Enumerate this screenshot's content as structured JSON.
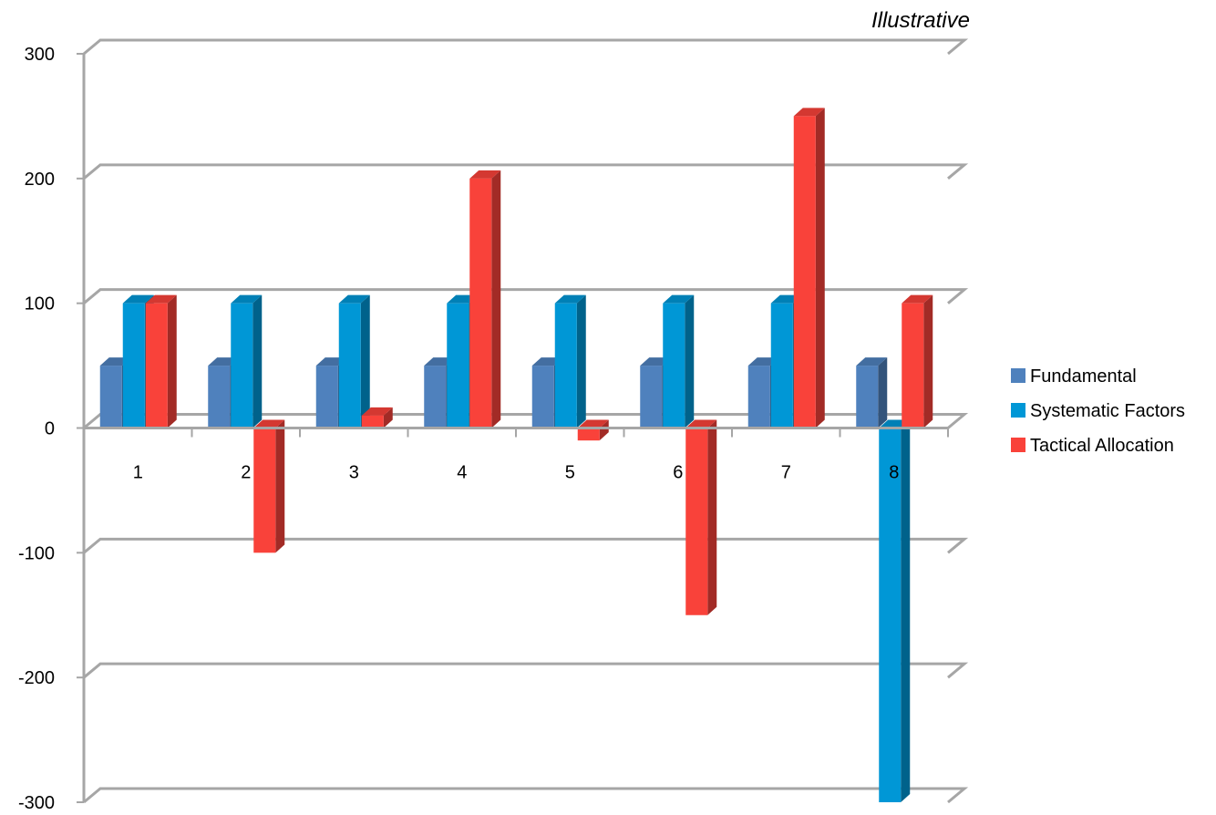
{
  "chart_data": {
    "type": "bar",
    "annotation": "Illustrative",
    "categories": [
      "1",
      "2",
      "3",
      "4",
      "5",
      "6",
      "7",
      "8"
    ],
    "series": [
      {
        "name": "Fundamental",
        "color": "#4f81bd",
        "values": [
          50,
          50,
          50,
          50,
          50,
          50,
          50,
          50
        ]
      },
      {
        "name": "Systematic Factors",
        "color": "#0097d6",
        "values": [
          100,
          100,
          100,
          100,
          100,
          100,
          100,
          -300
        ]
      },
      {
        "name": "Tactical Allocation",
        "color": "#f9423a",
        "values": [
          100,
          -100,
          10,
          200,
          -10,
          -150,
          250,
          100
        ]
      }
    ],
    "ylim": [
      -300,
      300
    ],
    "yticks": [
      "300",
      "200",
      "100",
      "0",
      "-100",
      "-200",
      "-300"
    ],
    "grid": true,
    "legend_position": "right"
  }
}
